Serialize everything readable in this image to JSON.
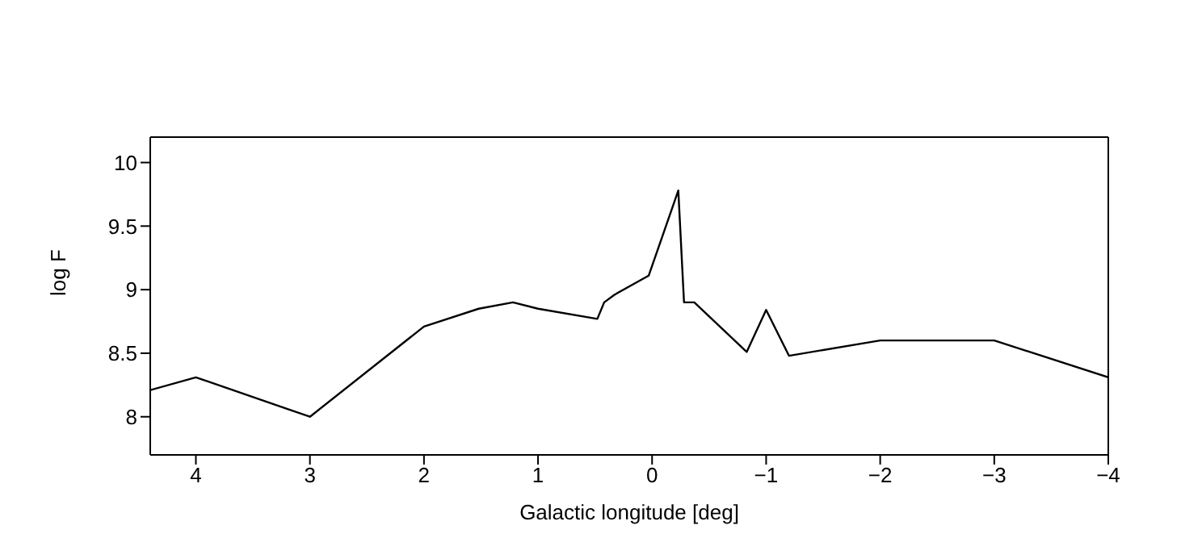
{
  "chart_data": {
    "type": "line",
    "xlabel": "Galactic longitude [deg]",
    "ylabel": "log F",
    "color": "#000000",
    "marker": "none",
    "line_style": "solid",
    "x": [
      4.4,
      4,
      3,
      2,
      1.52,
      1.22,
      1,
      0.48,
      0.42,
      0.33,
      0.03,
      -0.23,
      -0.28,
      -0.37,
      -0.83,
      -1,
      -1.2,
      -2,
      -3,
      -4
    ],
    "values": [
      8.21,
      8.31,
      8.0,
      8.71,
      8.85,
      8.9,
      8.85,
      8.77,
      8.9,
      8.96,
      9.11,
      9.78,
      8.9,
      8.9,
      8.51,
      8.84,
      8.48,
      8.6,
      8.6,
      8.31
    ],
    "xlim": [
      4.4,
      -4
    ],
    "xticks": [
      4,
      3,
      2,
      1,
      0,
      {
        "value": -1,
        "label": "−1"
      },
      {
        "value": -2,
        "label": "−2"
      },
      {
        "value": -3,
        "label": "−3"
      },
      {
        "value": -4,
        "label": "−4"
      }
    ],
    "ylim": [
      7.7,
      10.2
    ],
    "yticks": [
      8,
      8.5,
      9,
      9.5,
      10
    ]
  }
}
